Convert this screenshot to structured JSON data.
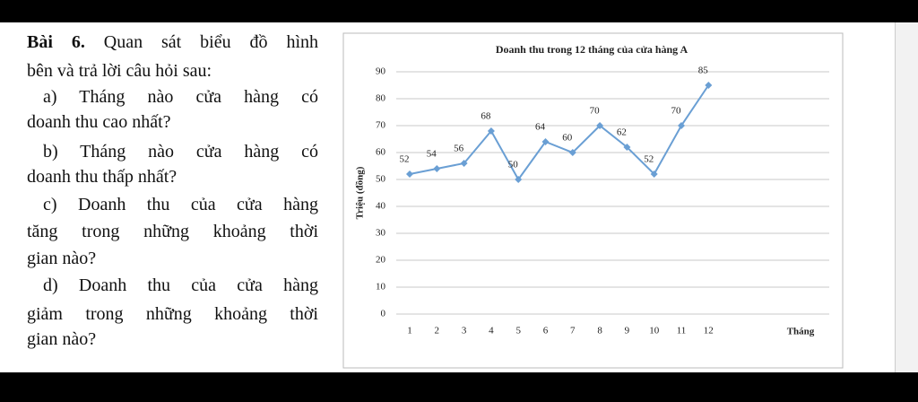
{
  "exercise": {
    "label": "Bài 6.",
    "lines": [
      "Quan sát biểu đồ hình",
      "bên và trả lời câu hỏi sau:",
      "a) Tháng nào cửa hàng có",
      "doanh thu cao nhất?",
      "b) Tháng nào cửa hàng có",
      "doanh thu thấp nhất?",
      "c) Doanh thu của cửa hàng",
      "tăng trong những khoảng thời",
      "gian nào?",
      "d) Doanh thu của cửa hàng",
      "giảm trong những khoảng thời",
      "gian nào?"
    ]
  },
  "chart_data": {
    "type": "line",
    "title": "Doanh thu trong 12 tháng của cửa hàng A",
    "y_label": "Triệu (đồng)",
    "x_label": "Tháng",
    "categories": [
      "1",
      "2",
      "3",
      "4",
      "5",
      "6",
      "7",
      "8",
      "9",
      "10",
      "11",
      "12"
    ],
    "values": [
      52,
      54,
      56,
      68,
      50,
      64,
      60,
      70,
      62,
      52,
      70,
      85
    ],
    "color": "#6a9fd4",
    "ylim": [
      0,
      90
    ],
    "yticks": [
      0,
      10,
      20,
      30,
      40,
      50,
      60,
      70,
      80,
      90
    ],
    "grid": true
  }
}
